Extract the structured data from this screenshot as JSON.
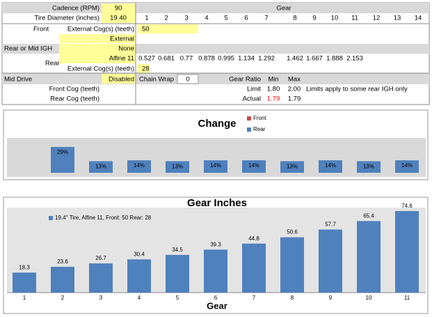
{
  "sheet": {
    "cadence_label": "Cadence (RPM)",
    "cadence": 90,
    "tire_label": "Tire Diameter (inches)",
    "tire": "19.40",
    "gear_header": "Gear",
    "gears": [
      1,
      2,
      3,
      4,
      5,
      6,
      7,
      8,
      9,
      10,
      11,
      12,
      13,
      14
    ],
    "front_label": "Front",
    "front_ext_label": "External Cog(s) (teeth)",
    "front_teeth": 50,
    "front_type": "External",
    "rear_mid_label": "Rear or Mid IGH",
    "rear_mid": "None",
    "rear_label": "Rear",
    "rear_hub": "Alfine 11",
    "ratios": [
      0.527,
      0.681,
      0.77,
      0.878,
      0.995,
      1.134,
      1.292,
      1.462,
      1.667,
      1.888,
      2.153
    ],
    "rear_ext_label": "External Cog(s) (teeth)",
    "rear_teeth": 28,
    "mid_drive_label": "Mid Drive",
    "mid_drive": "Disabled",
    "chain_wrap_label": "Chain Wrap",
    "chain_wrap": 0,
    "gear_ratio_label": "Gear Ratio",
    "min_label": "Min",
    "max_label": "Max",
    "front_cog_label": "Front Cog (teeth)",
    "rear_cog_label": "Rear Cog (teeth)",
    "limit_label": "Limit",
    "limit_min": "1.80",
    "limit_max": "2.00",
    "limit_note": "Limits apply to some rear IGH only",
    "actual_label": "Actual",
    "actual_min": 1.79,
    "actual_max": 1.79
  },
  "chart_data": [
    {
      "type": "bar",
      "title": "Change",
      "series": [
        {
          "name": "Front",
          "color": "#c0504d",
          "values": [
            null,
            null,
            null,
            null,
            null,
            null,
            null,
            null,
            null,
            null,
            null
          ]
        },
        {
          "name": "Rear",
          "color": "#4f81bd",
          "values": [
            null,
            29,
            13,
            14,
            13,
            14,
            14,
            13,
            14,
            13,
            14
          ],
          "value_labels": [
            null,
            "29%",
            "13%",
            "14%",
            "13%",
            "14%",
            "14%",
            "13%",
            "14%",
            "13%",
            "14%"
          ]
        }
      ]
    },
    {
      "type": "bar",
      "title": "Gear Inches",
      "xlabel": "Gear",
      "categories": [
        1,
        2,
        3,
        4,
        5,
        6,
        7,
        8,
        9,
        10,
        11
      ],
      "series": [
        {
          "name": "19.4'' Tire, Alfine 11,  Front: 50 Rear: 28",
          "color": "#4f81bd",
          "values": [
            18.3,
            23.6,
            26.7,
            30.4,
            34.5,
            39.3,
            44.8,
            50.6,
            57.7,
            65.4,
            74.6
          ]
        }
      ]
    }
  ]
}
